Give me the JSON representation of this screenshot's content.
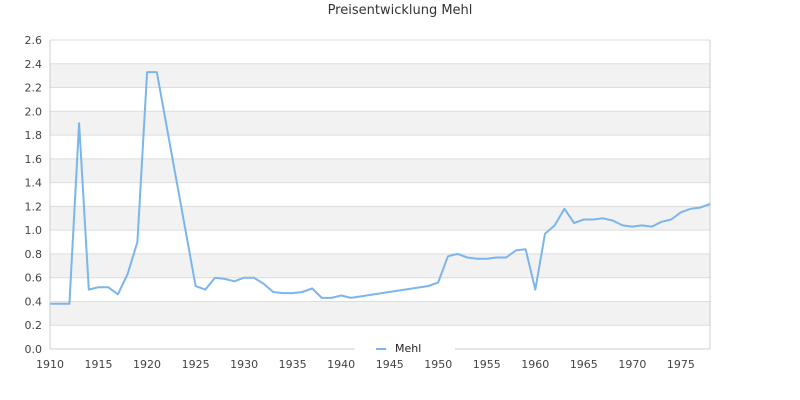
{
  "chart_data": {
    "type": "line",
    "title": "Preisentwicklung Mehl",
    "xlabel": "",
    "ylabel": "",
    "xlim": [
      1910,
      1978
    ],
    "ylim": [
      0,
      2.6
    ],
    "grid": true,
    "banded_background": true,
    "legend_position": "bottom-center",
    "y_ticks": [
      "0.0",
      "0.2",
      "0.4",
      "0.6",
      "0.8",
      "1.0",
      "1.2",
      "1.4",
      "1.6",
      "1.8",
      "2.0",
      "2.2",
      "2.4",
      "2.6"
    ],
    "x_ticks": [
      "1910",
      "1915",
      "1920",
      "1925",
      "1930",
      "1935",
      "1940",
      "1945",
      "1950",
      "1955",
      "1960",
      "1965",
      "1970",
      "1975"
    ],
    "series": [
      {
        "name": "Mehl",
        "color": "#7cb5ec",
        "x": [
          1910,
          1911,
          1912,
          1913,
          1914,
          1915,
          1916,
          1917,
          1918,
          1919,
          1920,
          1921,
          1925,
          1926,
          1927,
          1928,
          1929,
          1930,
          1931,
          1932,
          1933,
          1934,
          1935,
          1936,
          1937,
          1938,
          1939,
          1940,
          1941,
          1949,
          1950,
          1951,
          1952,
          1953,
          1954,
          1955,
          1956,
          1957,
          1958,
          1959,
          1960,
          1961,
          1962,
          1963,
          1964,
          1965,
          1966,
          1967,
          1968,
          1969,
          1970,
          1971,
          1972,
          1973,
          1974,
          1975,
          1976,
          1977,
          1978
        ],
        "values": [
          0.38,
          0.38,
          0.38,
          1.9,
          0.5,
          0.52,
          0.52,
          0.46,
          0.63,
          0.9,
          2.33,
          2.33,
          0.53,
          0.5,
          0.6,
          0.59,
          0.57,
          0.6,
          0.6,
          0.55,
          0.48,
          0.47,
          0.47,
          0.48,
          0.51,
          0.43,
          0.43,
          0.45,
          0.43,
          0.53,
          0.56,
          0.78,
          0.8,
          0.77,
          0.76,
          0.76,
          0.77,
          0.77,
          0.83,
          0.84,
          0.5,
          0.97,
          1.04,
          1.18,
          1.06,
          1.09,
          1.09,
          1.1,
          1.08,
          1.04,
          1.03,
          1.04,
          1.03,
          1.07,
          1.09,
          1.15,
          1.18,
          1.19,
          1.22
        ]
      }
    ]
  },
  "colors": {
    "band": "#f2f2f2",
    "gridline": "#dddddd",
    "axis": "#cccccc"
  }
}
